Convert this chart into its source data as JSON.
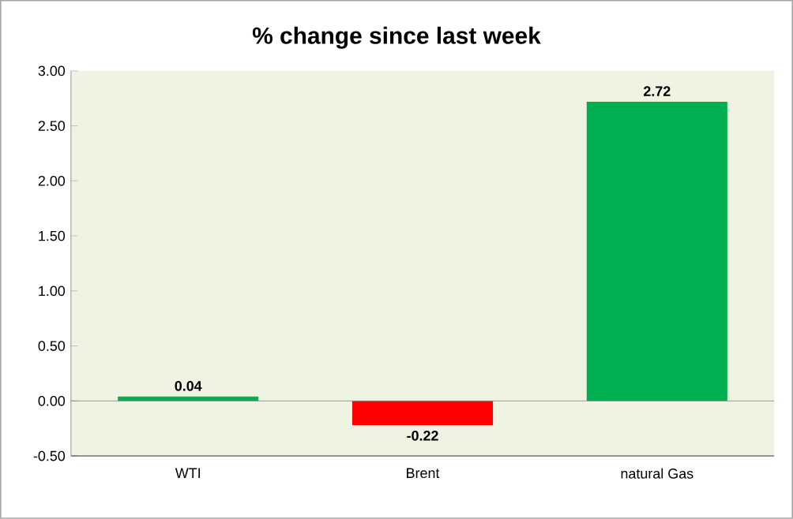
{
  "chart_data": {
    "type": "bar",
    "title": "% change since last week",
    "categories": [
      "WTI",
      "Brent",
      "natural Gas"
    ],
    "values": [
      0.04,
      -0.22,
      2.72
    ],
    "colors": [
      "#00b050",
      "#ff0000",
      "#00b050"
    ],
    "ylim": [
      -0.5,
      3.0
    ],
    "yticks": [
      {
        "value": -0.5,
        "label": "-0.50"
      },
      {
        "value": 0,
        "label": "0.00"
      },
      {
        "value": 0.5,
        "label": "0.50"
      },
      {
        "value": 1.0,
        "label": "1.00"
      },
      {
        "value": 1.5,
        "label": "1.50"
      },
      {
        "value": 2.0,
        "label": "2.00"
      },
      {
        "value": 2.5,
        "label": "2.50"
      },
      {
        "value": 3.0,
        "label": "3.00"
      }
    ],
    "data_labels": true
  }
}
